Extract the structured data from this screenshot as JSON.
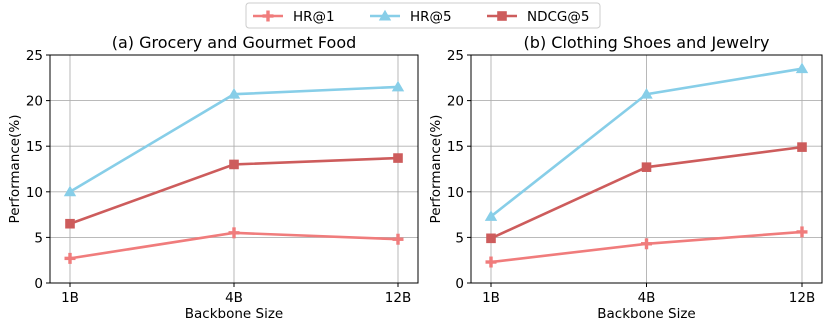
{
  "legend": {
    "position": "top-center",
    "items": [
      {
        "label": "HR@1",
        "color": "#F07C7C",
        "marker": "plus"
      },
      {
        "label": "HR@5",
        "color": "#87CEE8",
        "marker": "triangle"
      },
      {
        "label": "NDCG@5",
        "color": "#CD5C5C",
        "marker": "square"
      }
    ]
  },
  "chart_data": [
    {
      "type": "line",
      "title": "(a) Grocery and Gourmet Food",
      "xlabel": "Backbone Size",
      "ylabel": "Performance(%)",
      "categories": [
        "1B",
        "4B",
        "12B"
      ],
      "ylim": [
        0,
        25
      ],
      "yticks": [
        0,
        5,
        10,
        15,
        20,
        25
      ],
      "grid": true,
      "series": [
        {
          "name": "HR@1",
          "values": [
            2.7,
            5.5,
            4.8
          ]
        },
        {
          "name": "HR@5",
          "values": [
            10.0,
            20.7,
            21.5
          ]
        },
        {
          "name": "NDCG@5",
          "values": [
            6.5,
            13.0,
            13.7
          ]
        }
      ]
    },
    {
      "type": "line",
      "title": "(b) Clothing Shoes and Jewelry",
      "xlabel": "Backbone Size",
      "ylabel": "Performance(%)",
      "categories": [
        "1B",
        "4B",
        "12B"
      ],
      "ylim": [
        0,
        25
      ],
      "yticks": [
        0,
        5,
        10,
        15,
        20,
        25
      ],
      "grid": true,
      "series": [
        {
          "name": "HR@1",
          "values": [
            2.3,
            4.3,
            5.6
          ]
        },
        {
          "name": "HR@5",
          "values": [
            7.3,
            20.7,
            23.5
          ]
        },
        {
          "name": "NDCG@5",
          "values": [
            4.9,
            12.7,
            14.9
          ]
        }
      ]
    }
  ]
}
